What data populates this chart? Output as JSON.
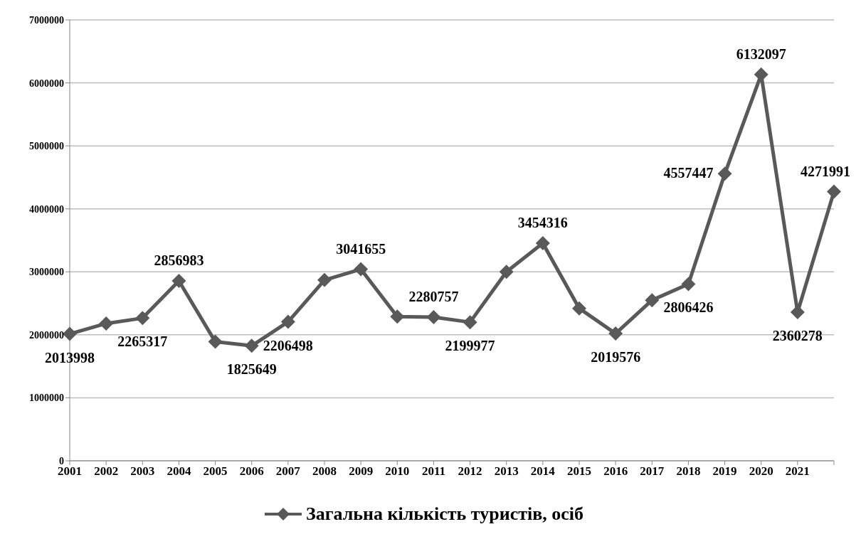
{
  "chart_data": {
    "type": "line",
    "categories": [
      "2001",
      "2002",
      "2003",
      "2004",
      "2005",
      "2006",
      "2007",
      "2008",
      "2009",
      "2010",
      "2011",
      "2012",
      "2013",
      "2014",
      "2015",
      "2016",
      "2017",
      "2018",
      "2019",
      "2020",
      "2021",
      null
    ],
    "series": [
      {
        "name": "Загальна кількість туристів, осіб",
        "color": "#595959",
        "values": [
          2013998,
          2180000,
          2265317,
          2856983,
          1890000,
          1825649,
          2206498,
          2870000,
          3041655,
          2290000,
          2280757,
          2199977,
          3000000,
          3454316,
          2420000,
          2019576,
          2550000,
          2806426,
          4557447,
          6132097,
          2360278,
          4271991
        ],
        "value_labels": [
          "2013998",
          null,
          "2265317",
          "2856983",
          null,
          "1825649",
          "2206498",
          null,
          "3041655",
          null,
          "2280757",
          "2199977",
          null,
          "3454316",
          null,
          "2019576",
          null,
          "2806426",
          "4557447",
          "6132097",
          "2360278",
          "4271991"
        ]
      }
    ],
    "ylim": [
      0,
      7000000
    ],
    "yticks": [
      0,
      1000000,
      2000000,
      3000000,
      4000000,
      5000000,
      6000000,
      7000000
    ],
    "grid": "y",
    "legend": "bottom",
    "marker": "diamond",
    "line_style": "solid"
  }
}
